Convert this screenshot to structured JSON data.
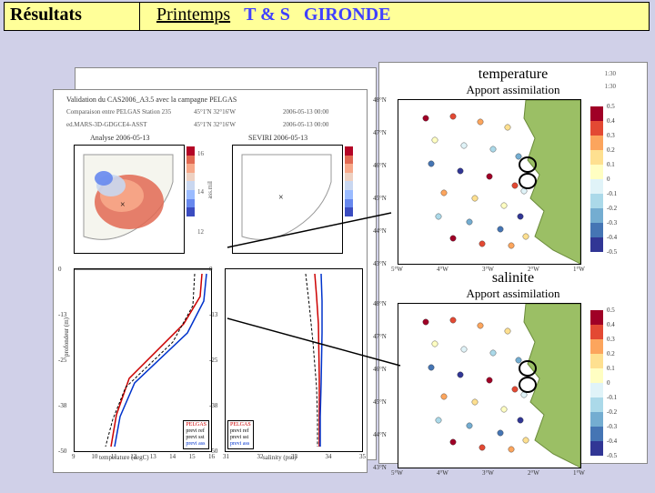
{
  "header": {
    "left": "Résultats",
    "season": "Printemps",
    "ts": "T & S",
    "site": "GIRONDE"
  },
  "left_panel": {
    "title1": "Validation du CAS2006_A3.5 avec la campagne PELGAS",
    "title2": "Comparaison entre PELGAS Station 235",
    "leg_left": "ed.MARS-3D-GDGCE4-ASST",
    "leg_mid": "45°1'N 32°16'W",
    "leg_right_a": "2006-05-13 00:00",
    "leg_right_b": "2006-05-13 00:00",
    "map1_title": "Analyse 2006-05-13",
    "map2_title": "SEVIRI 2006-05-13",
    "cbar_vals": [
      "16",
      "14",
      "12"
    ],
    "cbar_lbl": "ass.mil",
    "profiles": {
      "x1_label": "temperature (degC)",
      "x2_label": "salinity (psu)",
      "y_label": "profondeur (m)",
      "x1_ticks": [
        "9",
        "10",
        "11",
        "12",
        "13",
        "14",
        "15",
        "16"
      ],
      "x2_ticks": [
        "31",
        "32",
        "33",
        "34",
        "35"
      ],
      "y_ticks": [
        "0",
        "-13",
        "-25",
        "-38",
        "-50"
      ],
      "legend": [
        "PELGAS",
        "previ ref",
        "previ sst",
        "previ ass"
      ]
    },
    "colors": {
      "pelgas": "#cc0000",
      "ref": "#000000",
      "ass": "#0033cc"
    }
  },
  "right_panel": {
    "maps": [
      {
        "title": "temperature",
        "subtitle": "Apport assimilation"
      },
      {
        "title": "salinite",
        "subtitle": "Apport assimilation"
      }
    ],
    "lat_ticks": [
      "48°N",
      "47°N",
      "46°N",
      "45°N",
      "44°N",
      "43°N"
    ],
    "lon_ticks": [
      "5°W",
      "4°W",
      "3°W",
      "2°W",
      "1°W"
    ],
    "cbar_ticks": [
      "0.5",
      "0.4",
      "0.3",
      "0.2",
      "0.1",
      "0",
      "-0.1",
      "-0.2",
      "-0.3",
      "-0.4",
      "-0.5"
    ],
    "cbar_colors": [
      "#a00026",
      "#e34933",
      "#fca55d",
      "#fee090",
      "#fffec2",
      "#e0f3f8",
      "#abd9e9",
      "#74add1",
      "#4575b4",
      "#313695"
    ],
    "scale_labels": [
      "1:30",
      "1:30"
    ],
    "coast_color": "#9bbf65",
    "sea_color": "#ffffff",
    "dot_colors": [
      "#a00026",
      "#e34933",
      "#fca55d",
      "#fee090",
      "#fffec2",
      "#e0f3f8",
      "#abd9e9",
      "#74add1",
      "#4575b4",
      "#313695"
    ]
  },
  "mini_map_palette": [
    "#3b4cc0",
    "#6788ee",
    "#9abbff",
    "#c9d7f0",
    "#edd1c2",
    "#f7a889",
    "#e26952",
    "#b40426"
  ]
}
